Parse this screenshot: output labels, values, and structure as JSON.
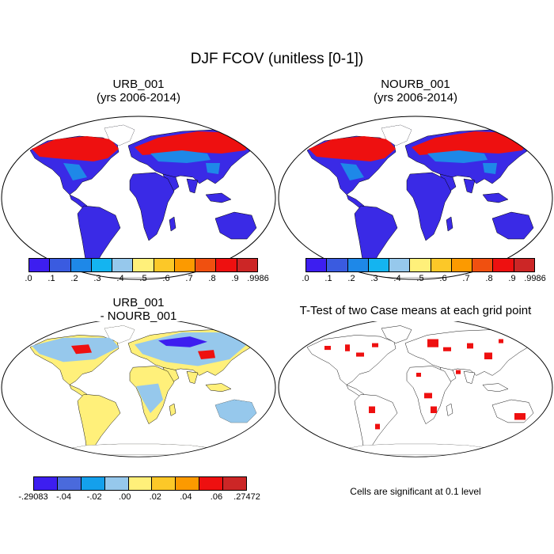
{
  "figure": {
    "title": "DJF FCOV (unitless [0-1])"
  },
  "panels": [
    {
      "id": "urb",
      "title_line1": "URB_001",
      "title_line2": "(yrs 2006-2014)"
    },
    {
      "id": "nourb",
      "title_line1": "NOURB_001",
      "title_line2": "(yrs 2006-2014)"
    },
    {
      "id": "diff",
      "title_line1": "URB_001",
      "title_line2": "- NOURB_001"
    },
    {
      "id": "ttest",
      "title_line1": "T-Test of two Case means at each grid point",
      "title_line2": ""
    }
  ],
  "colorbars": {
    "main": {
      "labels": [
        ".0",
        ".1",
        ".2",
        ".3",
        ".4",
        ".5",
        ".6",
        ".7",
        ".8",
        ".9",
        ".9986"
      ],
      "colors": [
        "#3d1ef0",
        "#3a5be0",
        "#1e88e8",
        "#14b4f0",
        "#96c8ec",
        "#fff07a",
        "#fcc828",
        "#fc9a00",
        "#f05010",
        "#ee1010",
        "#cc2626"
      ]
    },
    "diff": {
      "labels": [
        "-.29083",
        "-.04",
        "-.02",
        ".00",
        ".02",
        ".04",
        ".06",
        ".27472"
      ],
      "colors": [
        "#3d1ef0",
        "#4a6adc",
        "#14a0ec",
        "#96c8ec",
        "#fff07a",
        "#fcc828",
        "#fc9a00",
        "#ee1010",
        "#cc2626"
      ]
    }
  },
  "footnote": "Cells are significant at 0.1 level"
}
